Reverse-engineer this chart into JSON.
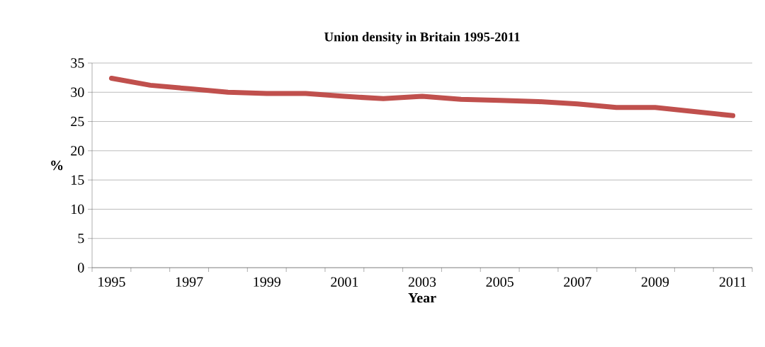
{
  "chart_data": {
    "type": "line",
    "title": "Union density in Britain 1995-2011",
    "xlabel": "Year",
    "ylabel": "%",
    "categories": [
      "1995",
      null,
      "1997",
      null,
      "1999",
      null,
      "2001",
      null,
      "2003",
      null,
      "2005",
      null,
      "2007",
      null,
      "2009",
      null,
      "2011"
    ],
    "series": [
      {
        "color": "#c0504d",
        "values": [
          32.4,
          31.2,
          30.6,
          30.0,
          29.8,
          29.8,
          29.3,
          28.9,
          29.3,
          28.8,
          28.6,
          28.4,
          28.0,
          27.4,
          27.4,
          26.7,
          26.0
        ]
      }
    ],
    "ylim": [
      0,
      35
    ],
    "yticks": [
      0,
      5,
      10,
      15,
      20,
      25,
      30,
      35
    ],
    "grid": "y",
    "marker": "none",
    "line_style": "solid"
  }
}
